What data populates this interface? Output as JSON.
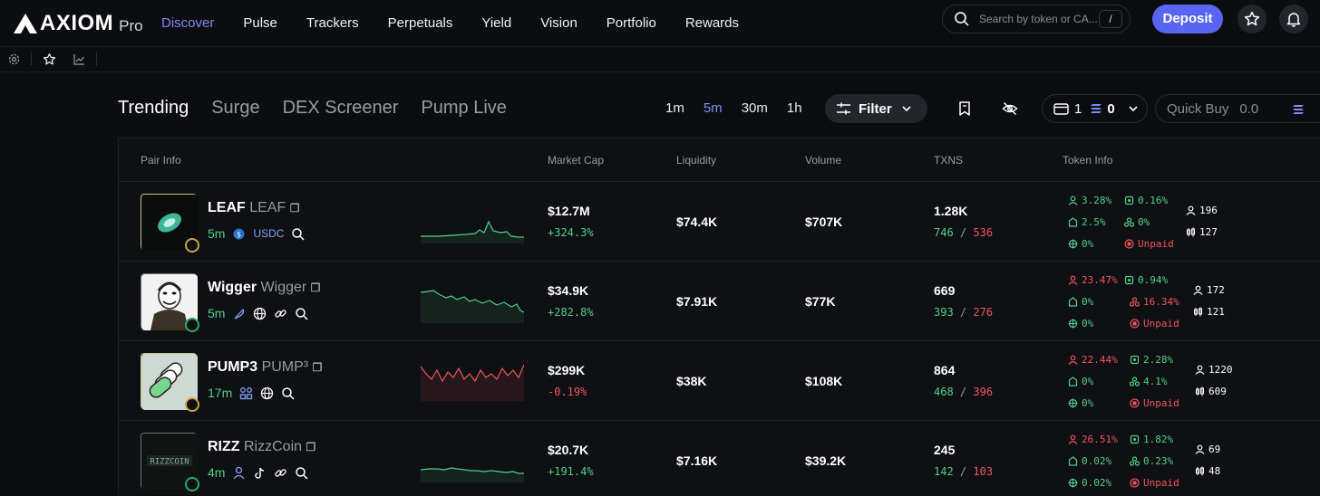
{
  "brand": {
    "name": "AXIOM",
    "suffix": "Pro"
  },
  "nav": [
    "Discover",
    "Pulse",
    "Trackers",
    "Perpetuals",
    "Yield",
    "Vision",
    "Portfolio",
    "Rewards"
  ],
  "search": {
    "placeholder": "Search by token or CA...",
    "shortcut": "/"
  },
  "deposit_label": "Deposit",
  "tabs": [
    "Trending",
    "Surge",
    "DEX Screener",
    "Pump Live"
  ],
  "timeframes": [
    "1m",
    "5m",
    "30m",
    "1h"
  ],
  "active_timeframe": "5m",
  "filter_label": "Filter",
  "wallet": {
    "count": "1",
    "balance": "0"
  },
  "quick_buy": {
    "label": "Quick Buy",
    "value": "0.0"
  },
  "columns": [
    "Pair Info",
    "Market Cap",
    "Liquidity",
    "Volume",
    "TXNS",
    "Token Info"
  ],
  "colors": {
    "accent": "#5865f2",
    "green": "#4fd18c",
    "red": "#f0565e"
  },
  "rows": [
    {
      "name": "LEAF",
      "symbol": "LEAF",
      "age": "5m",
      "quote": "USDC",
      "market_cap": "$12.7M",
      "change": "+324.3%",
      "liquidity": "$74.4K",
      "volume": "$707K",
      "txns": "1.28K",
      "buys": "746",
      "sells": "536",
      "top10": "3.28%",
      "dev": "0.16%",
      "snipers": "2.5%",
      "insiders": "0%",
      "bundlers": "0%",
      "dex": "Unpaid",
      "holders": "196",
      "pro_traders": "127"
    },
    {
      "name": "Wigger",
      "symbol": "Wigger",
      "age": "5m",
      "market_cap": "$34.9K",
      "change": "+282.8%",
      "liquidity": "$7.91K",
      "volume": "$77K",
      "txns": "669",
      "buys": "393",
      "sells": "276",
      "top10": "23.47%",
      "dev": "0.94%",
      "snipers": "0%",
      "insiders": "16.34%",
      "bundlers": "0%",
      "dex": "Unpaid",
      "holders": "172",
      "pro_traders": "121"
    },
    {
      "name": "PUMP3",
      "symbol": "PUMP³",
      "age": "17m",
      "market_cap": "$299K",
      "change": "-0.19%",
      "liquidity": "$38K",
      "volume": "$108K",
      "txns": "864",
      "buys": "468",
      "sells": "396",
      "top10": "22.44%",
      "dev": "2.28%",
      "snipers": "0%",
      "insiders": "4.1%",
      "bundlers": "0%",
      "dex": "Unpaid",
      "holders": "1220",
      "pro_traders": "609"
    },
    {
      "name": "RIZZ",
      "symbol": "RizzCoin",
      "age": "4m",
      "market_cap": "$20.7K",
      "change": "+191.4%",
      "liquidity": "$7.16K",
      "volume": "$39.2K",
      "txns": "245",
      "buys": "142",
      "sells": "103",
      "top10": "26.51%",
      "dev": "1.82%",
      "snipers": "0.02%",
      "insiders": "0.23%",
      "bundlers": "0.02%",
      "dex": "Unpaid",
      "holders": "69",
      "pro_traders": "48"
    }
  ]
}
